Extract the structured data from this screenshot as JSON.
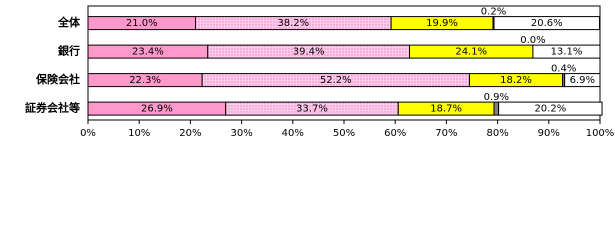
{
  "chart_data": {
    "type": "stacked-barh",
    "categories": [
      "全体",
      "銀行",
      "保険会社",
      "証券会社等"
    ],
    "series": [
      {
        "color": "#ff99cc",
        "values": [
          21.0,
          23.4,
          22.3,
          26.9
        ],
        "value_labels": [
          "21.0%",
          "23.4%",
          "22.3%",
          "26.9%"
        ]
      },
      {
        "color": "#ffccee",
        "values": [
          38.2,
          39.4,
          52.2,
          33.7
        ],
        "value_labels": [
          "38.2%",
          "39.4%",
          "52.2%",
          "33.7%"
        ]
      },
      {
        "color": "#ffff00",
        "values": [
          19.9,
          24.1,
          18.2,
          18.7
        ],
        "value_labels": [
          "19.9%",
          "24.1%",
          "18.2%",
          "18.7%"
        ]
      },
      {
        "color": "#808080",
        "values": [
          0.2,
          0.0,
          0.4,
          0.9
        ],
        "value_labels": [
          "0.2%",
          "0.0%",
          "0.4%",
          "0.9%"
        ]
      },
      {
        "color": "#ffffff",
        "values": [
          20.6,
          13.1,
          6.9,
          20.2
        ],
        "value_labels": [
          "20.6%",
          "13.1%",
          "6.9%",
          "20.2%"
        ]
      }
    ],
    "xlim": [
      0,
      100
    ],
    "xticks": [
      {
        "value": 0,
        "label": "0%"
      },
      {
        "value": 10,
        "label": "10%"
      },
      {
        "value": 20,
        "label": "20%"
      },
      {
        "value": 30,
        "label": "30%"
      },
      {
        "value": 40,
        "label": "40%"
      },
      {
        "value": 50,
        "label": "50%"
      },
      {
        "value": 60,
        "label": "60%"
      },
      {
        "value": 70,
        "label": "70%"
      },
      {
        "value": 80,
        "label": "80%"
      },
      {
        "value": 90,
        "label": "90%"
      },
      {
        "value": 100,
        "label": "100%"
      }
    ]
  }
}
